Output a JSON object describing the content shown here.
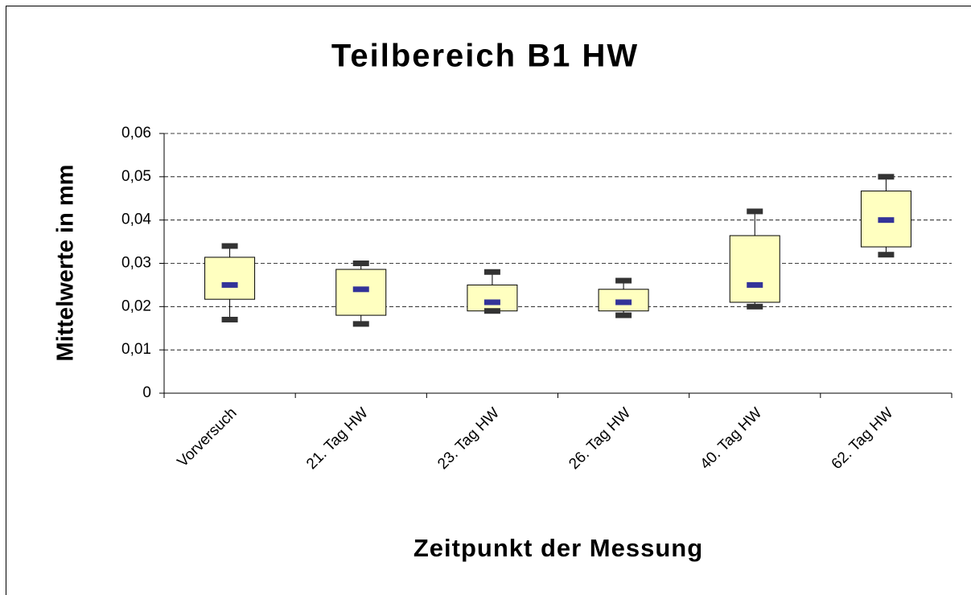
{
  "chart_data": {
    "type": "box",
    "title": "Teilbereich B1 HW",
    "x_label": "Zeitpunkt der Messung",
    "y_label": "Mittelwerte in mm",
    "categories": [
      "Vorversuch",
      "21. Tag HW",
      "23. Tag HW",
      "26. Tag HW",
      "40. Tag HW",
      "62. Tag HW"
    ],
    "values": [
      {
        "min": 0.017,
        "q1": 0.0217,
        "median": 0.025,
        "q3": 0.0314,
        "max": 0.034
      },
      {
        "min": 0.016,
        "q1": 0.018,
        "median": 0.024,
        "q3": 0.0286,
        "max": 0.03
      },
      {
        "min": 0.019,
        "q1": 0.019,
        "median": 0.021,
        "q3": 0.025,
        "max": 0.028
      },
      {
        "min": 0.018,
        "q1": 0.019,
        "median": 0.021,
        "q3": 0.024,
        "max": 0.026
      },
      {
        "min": 0.02,
        "q1": 0.021,
        "median": 0.025,
        "q3": 0.0364,
        "max": 0.042
      },
      {
        "min": 0.032,
        "q1": 0.0338,
        "median": 0.04,
        "q3": 0.0467,
        "max": 0.05
      }
    ],
    "box_color": "#ffffc0",
    "median_color": "#333399",
    "cap_color": "#333333",
    "ylim": [
      0,
      0.06
    ],
    "yticks": [
      0,
      {
        "value": 0.01,
        "label": "0,01"
      },
      {
        "value": 0.02,
        "label": "0,02"
      },
      {
        "value": 0.03,
        "label": "0,03"
      },
      {
        "value": 0.04,
        "label": "0,04"
      },
      {
        "value": 0.05,
        "label": "0,05"
      },
      {
        "value": 0.06,
        "label": "0,06"
      }
    ],
    "grid": true
  }
}
